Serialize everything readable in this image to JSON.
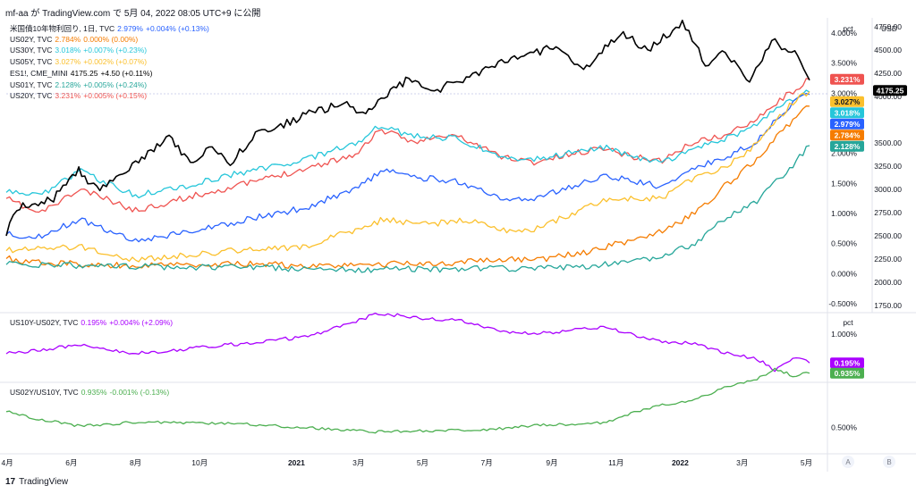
{
  "header": "mf-aa が TradingView.com で 5月 04, 2022 08:05 UTC+9 に公開",
  "footer_brand": "TradingView",
  "colors": {
    "US10Y": "#2962ff",
    "US02Y": "#f57c00",
    "US30Y": "#26c6da",
    "US05Y": "#fbc02d",
    "ES1": "#000000",
    "US01Y": "#26a69a",
    "US20Y": "#ef5350",
    "SPREAD": "#aa00ff",
    "RATIO": "#4caf50"
  },
  "legend_main": [
    {
      "key": "US10Y",
      "name": "米国債10年物利回り, 1日, TVC",
      "value": "2.979%",
      "change": "+0.004% (+0.13%)"
    },
    {
      "key": "US02Y",
      "name": "US02Y, TVC",
      "value": "2.784%",
      "change": "0.000% (0.00%)"
    },
    {
      "key": "US30Y",
      "name": "US30Y, TVC",
      "value": "3.018%",
      "change": "+0.007% (+0.23%)"
    },
    {
      "key": "US05Y",
      "name": "US05Y, TVC",
      "value": "3.027%",
      "change": "+0.002% (+0.07%)"
    },
    {
      "key": "ES1",
      "name": "ES1!, CME_MINI",
      "value": "4175.25",
      "change": "+4.50 (+0.11%)"
    },
    {
      "key": "US01Y",
      "name": "US01Y, TVC",
      "value": "2.128%",
      "change": "+0.005% (+0.24%)"
    },
    {
      "key": "US20Y",
      "name": "US20Y, TVC",
      "value": "3.231%",
      "change": "+0.005% (+0.15%)"
    }
  ],
  "legend_spread": {
    "name": "US10Y-US02Y, TVC",
    "value": "0.195%",
    "change": "+0.004% (+2.09%)"
  },
  "legend_ratio": {
    "name": "US02Y/US10Y, TVC",
    "value": "0.935%",
    "change": "-0.001% (-0.13%)"
  },
  "chart_data": {
    "type": "line",
    "x_ticks": [
      "4月",
      "6月",
      "8月",
      "10月",
      "2021",
      "3月",
      "5月",
      "7月",
      "9月",
      "11月",
      "2022",
      "3月",
      "5月"
    ],
    "x_tick_dates": [
      "2020-04-01",
      "2020-06-01",
      "2020-08-01",
      "2020-10-01",
      "2021-01-01",
      "2021-03-01",
      "2021-05-01",
      "2021-07-01",
      "2021-09-01",
      "2021-11-01",
      "2022-01-01",
      "2022-03-01",
      "2022-05-01"
    ],
    "x_range": [
      "2020-03-31",
      "2022-05-04"
    ],
    "panes": [
      {
        "y_label_left": "pct",
        "y_label_right": "USD",
        "pct_ticks": [
          "-0.500%",
          "0.000%",
          "0.500%",
          "1.000%",
          "1.500%",
          "2.000%",
          "2.500%",
          "3.000%",
          "3.500%",
          "4.000%"
        ],
        "pct_range": [
          -0.5,
          4.0
        ],
        "usd_ticks": [
          "1750.00",
          "2000.00",
          "2250.00",
          "2500.00",
          "2750.00",
          "3000.00",
          "3250.00",
          "3500.00",
          "4000.00",
          "4250.00",
          "4500.00",
          "4750.00"
        ],
        "usd_range": [
          1750,
          4750
        ],
        "series": [
          {
            "key": "US20Y",
            "name": "US20Y",
            "axis": "pct",
            "last_label": "3.231%",
            "points": [
              [
                "2020-03-31",
                1.25
              ],
              [
                "2020-05-01",
                1.0
              ],
              [
                "2020-06-10",
                1.4
              ],
              [
                "2020-08-01",
                1.05
              ],
              [
                "2020-09-15",
                1.25
              ],
              [
                "2020-11-15",
                1.5
              ],
              [
                "2021-01-10",
                1.75
              ],
              [
                "2021-03-01",
                2.0
              ],
              [
                "2021-03-20",
                2.4
              ],
              [
                "2021-04-20",
                2.2
              ],
              [
                "2021-06-01",
                2.3
              ],
              [
                "2021-07-15",
                1.95
              ],
              [
                "2021-08-15",
                1.85
              ],
              [
                "2021-10-20",
                2.1
              ],
              [
                "2021-11-15",
                1.95
              ],
              [
                "2021-12-15",
                1.88
              ],
              [
                "2022-01-15",
                2.2
              ],
              [
                "2022-02-15",
                2.3
              ],
              [
                "2022-03-15",
                2.6
              ],
              [
                "2022-04-15",
                3.0
              ],
              [
                "2022-05-04",
                3.231
              ]
            ]
          },
          {
            "key": "US30Y",
            "name": "US30Y",
            "axis": "pct",
            "last_label": "3.018%",
            "points": [
              [
                "2020-03-31",
                1.35
              ],
              [
                "2020-05-01",
                1.3
              ],
              [
                "2020-06-10",
                1.7
              ],
              [
                "2020-08-01",
                1.3
              ],
              [
                "2020-09-15",
                1.45
              ],
              [
                "2020-11-15",
                1.7
              ],
              [
                "2021-01-10",
                1.9
              ],
              [
                "2021-03-01",
                2.2
              ],
              [
                "2021-03-20",
                2.45
              ],
              [
                "2021-04-20",
                2.3
              ],
              [
                "2021-06-01",
                2.25
              ],
              [
                "2021-07-15",
                1.95
              ],
              [
                "2021-08-15",
                1.9
              ],
              [
                "2021-10-20",
                2.1
              ],
              [
                "2021-11-15",
                1.95
              ],
              [
                "2021-12-15",
                1.85
              ],
              [
                "2022-01-15",
                2.1
              ],
              [
                "2022-02-15",
                2.25
              ],
              [
                "2022-03-15",
                2.5
              ],
              [
                "2022-04-15",
                2.9
              ],
              [
                "2022-05-04",
                3.018
              ]
            ]
          },
          {
            "key": "US10Y",
            "name": "US10Y",
            "axis": "pct",
            "last_label": "2.979%",
            "points": [
              [
                "2020-03-31",
                0.65
              ],
              [
                "2020-05-01",
                0.62
              ],
              [
                "2020-06-08",
                0.9
              ],
              [
                "2020-08-01",
                0.55
              ],
              [
                "2020-09-15",
                0.68
              ],
              [
                "2020-11-15",
                0.9
              ],
              [
                "2021-01-10",
                1.1
              ],
              [
                "2021-03-01",
                1.45
              ],
              [
                "2021-03-25",
                1.72
              ],
              [
                "2021-04-20",
                1.6
              ],
              [
                "2021-06-01",
                1.55
              ],
              [
                "2021-07-20",
                1.2
              ],
              [
                "2021-08-15",
                1.25
              ],
              [
                "2021-10-20",
                1.62
              ],
              [
                "2021-11-15",
                1.55
              ],
              [
                "2021-12-15",
                1.45
              ],
              [
                "2022-01-15",
                1.75
              ],
              [
                "2022-02-15",
                1.95
              ],
              [
                "2022-03-15",
                2.2
              ],
              [
                "2022-04-15",
                2.8
              ],
              [
                "2022-05-04",
                2.979
              ]
            ]
          },
          {
            "key": "US05Y",
            "name": "US05Y",
            "axis": "pct",
            "last_label": "3.027%",
            "points": [
              [
                "2020-03-31",
                0.38
              ],
              [
                "2020-06-08",
                0.45
              ],
              [
                "2020-08-01",
                0.22
              ],
              [
                "2020-11-15",
                0.4
              ],
              [
                "2021-01-10",
                0.45
              ],
              [
                "2021-03-01",
                0.75
              ],
              [
                "2021-03-25",
                0.9
              ],
              [
                "2021-05-01",
                0.82
              ],
              [
                "2021-06-20",
                0.9
              ],
              [
                "2021-07-20",
                0.7
              ],
              [
                "2021-08-15",
                0.75
              ],
              [
                "2021-10-20",
                1.2
              ],
              [
                "2021-11-15",
                1.25
              ],
              [
                "2021-12-15",
                1.25
              ],
              [
                "2022-01-15",
                1.6
              ],
              [
                "2022-02-15",
                1.8
              ],
              [
                "2022-03-15",
                2.15
              ],
              [
                "2022-04-15",
                2.8
              ],
              [
                "2022-05-04",
                3.027
              ]
            ]
          },
          {
            "key": "US02Y",
            "name": "US02Y",
            "axis": "pct",
            "last_label": "2.784%",
            "points": [
              [
                "2020-03-31",
                0.25
              ],
              [
                "2020-05-01",
                0.18
              ],
              [
                "2020-08-01",
                0.13
              ],
              [
                "2020-11-15",
                0.17
              ],
              [
                "2021-02-01",
                0.11
              ],
              [
                "2021-04-01",
                0.16
              ],
              [
                "2021-06-01",
                0.17
              ],
              [
                "2021-07-01",
                0.25
              ],
              [
                "2021-08-15",
                0.22
              ],
              [
                "2021-10-01",
                0.35
              ],
              [
                "2021-11-15",
                0.55
              ],
              [
                "2021-12-15",
                0.7
              ],
              [
                "2022-01-15",
                1.0
              ],
              [
                "2022-02-15",
                1.5
              ],
              [
                "2022-03-15",
                1.9
              ],
              [
                "2022-04-15",
                2.5
              ],
              [
                "2022-05-04",
                2.784
              ]
            ]
          },
          {
            "key": "US01Y",
            "name": "US01Y",
            "axis": "pct",
            "last_label": "2.128%",
            "points": [
              [
                "2020-03-31",
                0.15
              ],
              [
                "2020-05-01",
                0.15
              ],
              [
                "2020-08-01",
                0.12
              ],
              [
                "2020-11-15",
                0.1
              ],
              [
                "2021-03-01",
                0.07
              ],
              [
                "2021-07-01",
                0.08
              ],
              [
                "2021-09-15",
                0.1
              ],
              [
                "2021-11-15",
                0.18
              ],
              [
                "2021-12-15",
                0.28
              ],
              [
                "2022-01-15",
                0.5
              ],
              [
                "2022-02-15",
                0.95
              ],
              [
                "2022-03-15",
                1.2
              ],
              [
                "2022-04-15",
                1.75
              ],
              [
                "2022-05-04",
                2.128
              ]
            ]
          },
          {
            "key": "ES1",
            "name": "ES1!",
            "axis": "usd",
            "last_label": "4175.25",
            "points": [
              [
                "2020-03-31",
                2500
              ],
              [
                "2020-04-10",
                2800
              ],
              [
                "2020-05-15",
                2900
              ],
              [
                "2020-06-08",
                3200
              ],
              [
                "2020-06-25",
                3000
              ],
              [
                "2020-08-01",
                3280
              ],
              [
                "2020-09-02",
                3550
              ],
              [
                "2020-09-25",
                3250
              ],
              [
                "2020-10-10",
                3480
              ],
              [
                "2020-10-30",
                3260
              ],
              [
                "2020-11-20",
                3570
              ],
              [
                "2021-01-10",
                3800
              ],
              [
                "2021-02-15",
                3930
              ],
              [
                "2021-03-05",
                3800
              ],
              [
                "2021-04-15",
                4170
              ],
              [
                "2021-05-12",
                4060
              ],
              [
                "2021-07-15",
                4360
              ],
              [
                "2021-09-02",
                4530
              ],
              [
                "2021-10-04",
                4300
              ],
              [
                "2021-11-05",
                4690
              ],
              [
                "2021-12-01",
                4500
              ],
              [
                "2022-01-03",
                4790
              ],
              [
                "2022-01-28",
                4300
              ],
              [
                "2022-02-10",
                4500
              ],
              [
                "2022-03-08",
                4170
              ],
              [
                "2022-03-29",
                4620
              ],
              [
                "2022-04-20",
                4450
              ],
              [
                "2022-05-04",
                4175.25
              ]
            ]
          }
        ]
      },
      {
        "y_label": "pct",
        "ticks": [
          "0.000%",
          "1.000%"
        ],
        "range": [
          -0.1,
          1.4
        ],
        "series": [
          {
            "key": "SPREAD",
            "name": "US10Y-US02Y",
            "last_label": "0.195%",
            "points": [
              [
                "2020-03-31",
                0.45
              ],
              [
                "2020-06-10",
                0.7
              ],
              [
                "2020-08-01",
                0.45
              ],
              [
                "2020-11-15",
                0.75
              ],
              [
                "2021-01-15",
                0.95
              ],
              [
                "2021-03-20",
                1.58
              ],
              [
                "2021-05-01",
                1.45
              ],
              [
                "2021-06-01",
                1.4
              ],
              [
                "2021-07-20",
                1.05
              ],
              [
                "2021-08-15",
                1.0
              ],
              [
                "2021-10-20",
                1.2
              ],
              [
                "2021-11-15",
                1.0
              ],
              [
                "2021-12-15",
                0.78
              ],
              [
                "2022-01-15",
                0.75
              ],
              [
                "2022-02-15",
                0.45
              ],
              [
                "2022-03-15",
                0.3
              ],
              [
                "2022-04-01",
                0.0
              ],
              [
                "2022-04-18",
                0.35
              ],
              [
                "2022-05-04",
                0.195
              ]
            ]
          }
        ]
      },
      {
        "y_label": "",
        "ticks": [
          "0.500%"
        ],
        "range": [
          0.2,
          1.05
        ],
        "series": [
          {
            "key": "RATIO",
            "name": "US02Y/US10Y",
            "last_label": "0.935%",
            "points": [
              [
                "2020-03-31",
                0.38
              ],
              [
                "2020-05-01",
                0.27
              ],
              [
                "2020-06-10",
                0.17
              ],
              [
                "2020-08-01",
                0.23
              ],
              [
                "2020-11-15",
                0.2
              ],
              [
                "2021-03-20",
                0.09
              ],
              [
                "2021-07-01",
                0.12
              ],
              [
                "2021-08-15",
                0.18
              ],
              [
                "2021-10-20",
                0.22
              ],
              [
                "2021-11-15",
                0.35
              ],
              [
                "2021-12-15",
                0.48
              ],
              [
                "2022-01-15",
                0.55
              ],
              [
                "2022-02-15",
                0.75
              ],
              [
                "2022-03-15",
                0.85
              ],
              [
                "2022-04-01",
                1.0
              ],
              [
                "2022-04-18",
                0.9
              ],
              [
                "2022-05-04",
                0.935
              ]
            ]
          }
        ]
      }
    ],
    "price_scale_buttons": [
      "A",
      "B"
    ]
  }
}
